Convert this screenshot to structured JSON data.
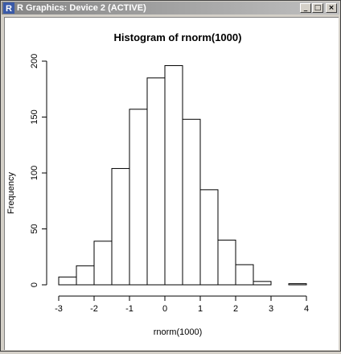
{
  "window": {
    "title": "R Graphics: Device 2 (ACTIVE)",
    "minimize_label": "_",
    "maximize_label": "□",
    "close_label": "×"
  },
  "chart_data": {
    "type": "bar",
    "title": "Histogram of rnorm(1000)",
    "xlabel": "rnorm(1000)",
    "ylabel": "Frequency",
    "bin_edges": [
      -3,
      -2.5,
      -2,
      -1.5,
      -1,
      -0.5,
      0,
      0.5,
      1,
      1.5,
      2,
      2.5,
      3,
      3.5,
      4
    ],
    "values": [
      7,
      17,
      39,
      104,
      157,
      185,
      196,
      148,
      85,
      40,
      18,
      3,
      0,
      1
    ],
    "xticks": [
      -3,
      -2,
      -1,
      0,
      1,
      2,
      3,
      4
    ],
    "yticks": [
      0,
      50,
      100,
      150,
      200
    ],
    "xlim": [
      -3,
      4
    ],
    "ylim": [
      0,
      200
    ]
  }
}
